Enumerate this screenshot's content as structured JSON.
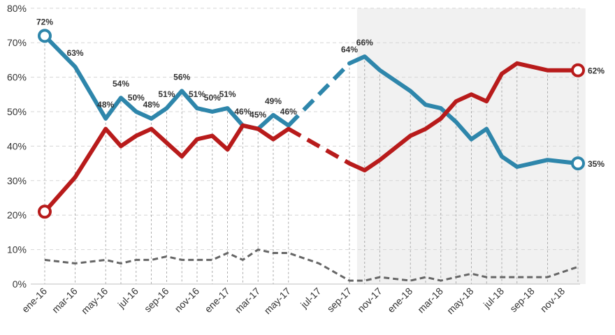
{
  "chart_data": {
    "type": "line",
    "y_unit": "%",
    "ylim": [
      0,
      80
    ],
    "y_ticks": [
      0,
      10,
      20,
      30,
      40,
      50,
      60,
      70,
      80
    ],
    "grid": true,
    "x_labels": [
      "ene-16",
      "mar-16",
      "may-16",
      "jul-16",
      "sep-16",
      "nov-16",
      "ene-17",
      "mar-17",
      "may-17",
      "jul-17",
      "sep-17",
      "nov-17",
      "ene-18",
      "mar-18",
      "may-18",
      "jul-18",
      "sep-18",
      "nov-18"
    ],
    "shaded_x_range": [
      20.5,
      35.5
    ],
    "series": [
      {
        "color": "#2e86ab",
        "style": "solid",
        "points": [
          [
            0,
            72
          ],
          [
            2,
            63
          ],
          [
            4,
            48
          ],
          [
            5,
            54
          ],
          [
            6,
            50
          ],
          [
            7,
            48
          ],
          [
            8,
            51
          ],
          [
            9,
            56
          ],
          [
            10,
            51
          ],
          [
            11,
            50
          ],
          [
            12,
            51
          ],
          [
            13,
            46
          ],
          [
            14,
            45
          ],
          [
            15,
            49
          ],
          [
            16,
            46
          ],
          [
            20,
            64
          ],
          [
            21,
            66
          ],
          [
            22,
            62
          ],
          [
            24,
            56
          ],
          [
            25,
            52
          ],
          [
            26,
            51
          ],
          [
            27,
            47
          ],
          [
            28,
            42
          ],
          [
            29,
            45
          ],
          [
            30,
            37
          ],
          [
            31,
            34
          ],
          [
            33,
            36
          ],
          [
            35,
            35
          ]
        ],
        "gap": [
          16,
          20
        ],
        "markers": [
          0,
          35
        ]
      },
      {
        "color": "#b81b1b",
        "style": "solid",
        "points": [
          [
            0,
            21
          ],
          [
            2,
            31
          ],
          [
            4,
            45
          ],
          [
            5,
            40
          ],
          [
            6,
            43
          ],
          [
            7,
            45
          ],
          [
            8,
            41
          ],
          [
            9,
            37
          ],
          [
            10,
            42
          ],
          [
            11,
            43
          ],
          [
            12,
            39
          ],
          [
            13,
            46
          ],
          [
            14,
            45
          ],
          [
            15,
            42
          ],
          [
            16,
            45
          ],
          [
            20,
            35
          ],
          [
            21,
            33
          ],
          [
            22,
            36
          ],
          [
            24,
            43
          ],
          [
            25,
            45
          ],
          [
            26,
            48
          ],
          [
            27,
            53
          ],
          [
            28,
            55
          ],
          [
            29,
            53
          ],
          [
            30,
            61
          ],
          [
            31,
            64
          ],
          [
            33,
            62
          ],
          [
            35,
            62
          ]
        ],
        "gap": [
          16,
          20
        ],
        "markers": [
          0,
          35
        ]
      },
      {
        "color": "#666666",
        "style": "dashed",
        "points": [
          [
            0,
            7
          ],
          [
            2,
            6
          ],
          [
            4,
            7
          ],
          [
            5,
            6
          ],
          [
            6,
            7
          ],
          [
            7,
            7
          ],
          [
            8,
            8
          ],
          [
            9,
            7
          ],
          [
            10,
            7
          ],
          [
            11,
            7
          ],
          [
            12,
            9
          ],
          [
            13,
            7
          ],
          [
            14,
            10
          ],
          [
            15,
            9
          ],
          [
            16,
            9
          ],
          [
            18,
            6
          ],
          [
            20,
            1
          ],
          [
            21,
            1
          ],
          [
            22,
            2
          ],
          [
            24,
            1
          ],
          [
            25,
            2
          ],
          [
            26,
            1
          ],
          [
            27,
            2
          ],
          [
            28,
            3
          ],
          [
            29,
            2
          ],
          [
            30,
            2
          ],
          [
            31,
            2
          ],
          [
            33,
            2
          ],
          [
            35,
            5
          ]
        ]
      }
    ],
    "data_labels": [
      {
        "x": 0,
        "y": 72,
        "text": "72%",
        "pos": "above"
      },
      {
        "x": 2,
        "y": 63,
        "text": "63%",
        "pos": "above"
      },
      {
        "x": 4,
        "y": 48,
        "text": "48%",
        "pos": "above"
      },
      {
        "x": 5,
        "y": 54,
        "text": "54%",
        "pos": "above"
      },
      {
        "x": 6,
        "y": 50,
        "text": "50%",
        "pos": "above"
      },
      {
        "x": 7,
        "y": 48,
        "text": "48%",
        "pos": "above"
      },
      {
        "x": 8,
        "y": 51,
        "text": "51%",
        "pos": "above"
      },
      {
        "x": 9,
        "y": 56,
        "text": "56%",
        "pos": "above"
      },
      {
        "x": 10,
        "y": 51,
        "text": "51%",
        "pos": "above"
      },
      {
        "x": 11,
        "y": 50,
        "text": "50%",
        "pos": "above"
      },
      {
        "x": 12,
        "y": 51,
        "text": "51%",
        "pos": "above"
      },
      {
        "x": 13,
        "y": 46,
        "text": "46%",
        "pos": "above"
      },
      {
        "x": 14,
        "y": 45,
        "text": "45%",
        "pos": "above"
      },
      {
        "x": 15,
        "y": 49,
        "text": "49%",
        "pos": "above"
      },
      {
        "x": 16,
        "y": 46,
        "text": "46%",
        "pos": "above"
      },
      {
        "x": 20,
        "y": 64,
        "text": "64%",
        "pos": "above"
      },
      {
        "x": 21,
        "y": 66,
        "text": "66%",
        "pos": "above"
      },
      {
        "x": 35,
        "y": 62,
        "text": "62%",
        "pos": "right"
      },
      {
        "x": 35,
        "y": 35,
        "text": "35%",
        "pos": "right"
      }
    ]
  }
}
